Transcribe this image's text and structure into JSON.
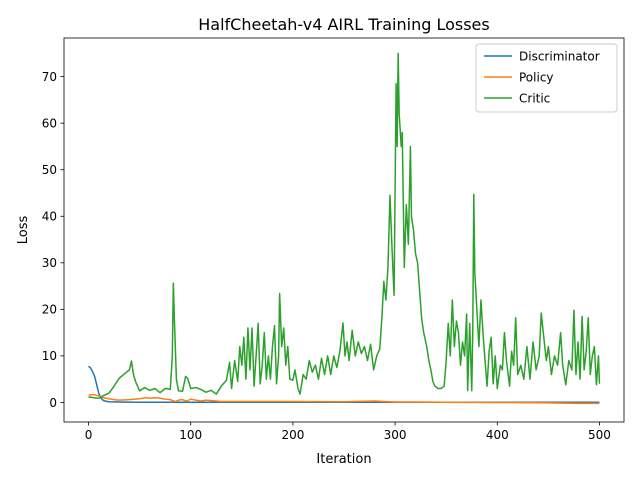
{
  "chart_data": {
    "type": "line",
    "title": "HalfCheetah-v4 AIRL Training Losses",
    "xlabel": "Iteration",
    "ylabel": "Loss",
    "xlim": [
      -24,
      524
    ],
    "ylim": [
      -4.2,
      78.3
    ],
    "xticks": [
      0,
      100,
      200,
      300,
      400,
      500
    ],
    "yticks": [
      0,
      10,
      20,
      30,
      40,
      50,
      60,
      70
    ],
    "grid": false,
    "legend_position": "upper right",
    "series": [
      {
        "name": "Discriminator",
        "color": "#1f77b4",
        "points": [
          [
            0,
            7.8
          ],
          [
            2,
            7.4
          ],
          [
            4,
            6.6
          ],
          [
            6,
            5.6
          ],
          [
            8,
            3.8
          ],
          [
            10,
            2.0
          ],
          [
            12,
            1.0
          ],
          [
            14,
            0.5
          ],
          [
            16,
            0.3
          ],
          [
            20,
            0.15
          ],
          [
            30,
            0.1
          ],
          [
            50,
            0.05
          ],
          [
            100,
            0.05
          ],
          [
            200,
            0.05
          ],
          [
            300,
            0.05
          ],
          [
            400,
            0.05
          ],
          [
            500,
            0.05
          ]
        ]
      },
      {
        "name": "Policy",
        "color": "#ff7f0e",
        "points": [
          [
            0,
            1.6
          ],
          [
            5,
            1.7
          ],
          [
            10,
            1.4
          ],
          [
            15,
            1.0
          ],
          [
            20,
            0.8
          ],
          [
            25,
            0.6
          ],
          [
            30,
            0.5
          ],
          [
            40,
            0.6
          ],
          [
            50,
            0.8
          ],
          [
            55,
            1.0
          ],
          [
            60,
            0.9
          ],
          [
            65,
            1.0
          ],
          [
            70,
            0.9
          ],
          [
            75,
            0.7
          ],
          [
            80,
            0.6
          ],
          [
            85,
            0.2
          ],
          [
            88,
            0.5
          ],
          [
            92,
            0.6
          ],
          [
            96,
            0.3
          ],
          [
            100,
            0.7
          ],
          [
            105,
            0.5
          ],
          [
            110,
            0.3
          ],
          [
            115,
            0.5
          ],
          [
            120,
            0.4
          ],
          [
            125,
            0.3
          ],
          [
            130,
            0.2
          ],
          [
            150,
            0.2
          ],
          [
            200,
            0.2
          ],
          [
            250,
            0.15
          ],
          [
            280,
            0.3
          ],
          [
            300,
            0.1
          ],
          [
            320,
            0.1
          ],
          [
            350,
            0.05
          ],
          [
            400,
            0.0
          ],
          [
            450,
            -0.1
          ],
          [
            480,
            -0.2
          ],
          [
            500,
            -0.2
          ]
        ]
      },
      {
        "name": "Critic",
        "color": "#2ca02c",
        "points": [
          [
            0,
            1.2
          ],
          [
            5,
            1.0
          ],
          [
            10,
            0.9
          ],
          [
            15,
            1.5
          ],
          [
            20,
            2.0
          ],
          [
            25,
            3.5
          ],
          [
            30,
            5.2
          ],
          [
            35,
            6.1
          ],
          [
            40,
            7.0
          ],
          [
            42,
            8.9
          ],
          [
            44,
            6.0
          ],
          [
            46,
            4.5
          ],
          [
            50,
            2.5
          ],
          [
            55,
            3.2
          ],
          [
            60,
            2.6
          ],
          [
            65,
            3.0
          ],
          [
            70,
            2.1
          ],
          [
            75,
            3.0
          ],
          [
            80,
            2.8
          ],
          [
            82,
            10.0
          ],
          [
            83,
            25.6
          ],
          [
            84,
            18.0
          ],
          [
            86,
            5.0
          ],
          [
            88,
            2.5
          ],
          [
            92,
            2.4
          ],
          [
            95,
            5.6
          ],
          [
            97,
            5.2
          ],
          [
            100,
            3.0
          ],
          [
            105,
            3.2
          ],
          [
            110,
            2.8
          ],
          [
            115,
            2.2
          ],
          [
            120,
            2.6
          ],
          [
            125,
            1.8
          ],
          [
            130,
            3.5
          ],
          [
            135,
            4.8
          ],
          [
            138,
            8.6
          ],
          [
            140,
            3.0
          ],
          [
            143,
            9.0
          ],
          [
            146,
            4.5
          ],
          [
            148,
            12.0
          ],
          [
            150,
            8.0
          ],
          [
            152,
            14.0
          ],
          [
            154,
            5.0
          ],
          [
            156,
            16.0
          ],
          [
            158,
            7.0
          ],
          [
            160,
            16.0
          ],
          [
            162,
            3.5
          ],
          [
            164,
            10.0
          ],
          [
            166,
            17.0
          ],
          [
            168,
            4.0
          ],
          [
            170,
            8.0
          ],
          [
            172,
            15.0
          ],
          [
            174,
            5.0
          ],
          [
            176,
            10.0
          ],
          [
            178,
            5.0
          ],
          [
            180,
            12.0
          ],
          [
            182,
            16.5
          ],
          [
            184,
            4.0
          ],
          [
            186,
            10.0
          ],
          [
            187,
            23.4
          ],
          [
            189,
            12.0
          ],
          [
            191,
            16.0
          ],
          [
            193,
            8.0
          ],
          [
            195,
            12.0
          ],
          [
            197,
            5.0
          ],
          [
            200,
            4.8
          ],
          [
            202,
            7.0
          ],
          [
            205,
            3.0
          ],
          [
            207,
            1.8
          ],
          [
            210,
            6.0
          ],
          [
            213,
            5.0
          ],
          [
            216,
            9.0
          ],
          [
            219,
            6.5
          ],
          [
            222,
            8.0
          ],
          [
            225,
            5.0
          ],
          [
            228,
            9.5
          ],
          [
            231,
            6.0
          ],
          [
            234,
            10.0
          ],
          [
            237,
            6.0
          ],
          [
            240,
            10.0
          ],
          [
            243,
            7.5
          ],
          [
            246,
            11.0
          ],
          [
            249,
            17.1
          ],
          [
            251,
            10.0
          ],
          [
            253,
            13.0
          ],
          [
            255,
            9.0
          ],
          [
            258,
            15.5
          ],
          [
            261,
            10.0
          ],
          [
            264,
            13.0
          ],
          [
            267,
            10.5
          ],
          [
            270,
            12.0
          ],
          [
            273,
            9.0
          ],
          [
            276,
            12.5
          ],
          [
            279,
            7.0
          ],
          [
            282,
            10.0
          ],
          [
            285,
            11.5
          ],
          [
            287,
            18.0
          ],
          [
            289,
            26.0
          ],
          [
            291,
            22.0
          ],
          [
            293,
            29.0
          ],
          [
            295,
            44.5
          ],
          [
            297,
            33.0
          ],
          [
            299,
            23.0
          ],
          [
            301,
            68.5
          ],
          [
            302,
            55.0
          ],
          [
            303,
            75.0
          ],
          [
            304,
            62.0
          ],
          [
            306,
            55.0
          ],
          [
            307,
            58.0
          ],
          [
            309,
            29.0
          ],
          [
            311,
            42.5
          ],
          [
            313,
            34.0
          ],
          [
            315,
            55.0
          ],
          [
            316,
            40.0
          ],
          [
            318,
            37.0
          ],
          [
            320,
            32.0
          ],
          [
            322,
            30.0
          ],
          [
            324,
            24.0
          ],
          [
            326,
            18.0
          ],
          [
            328,
            15.0
          ],
          [
            331,
            12.0
          ],
          [
            333,
            9.0
          ],
          [
            335,
            7.0
          ],
          [
            337,
            4.5
          ],
          [
            339,
            3.5
          ],
          [
            342,
            3.0
          ],
          [
            345,
            3.0
          ],
          [
            348,
            3.5
          ],
          [
            350,
            9.0
          ],
          [
            352,
            17.0
          ],
          [
            354,
            10.0
          ],
          [
            356,
            22.0
          ],
          [
            358,
            12.0
          ],
          [
            360,
            17.5
          ],
          [
            362,
            15.0
          ],
          [
            364,
            8.0
          ],
          [
            366,
            13.0
          ],
          [
            368,
            10.0
          ],
          [
            370,
            19.0
          ],
          [
            371,
            2.5
          ],
          [
            373,
            17.0
          ],
          [
            375,
            2.5
          ],
          [
            376,
            15.0
          ],
          [
            377,
            44.7
          ],
          [
            378,
            28.0
          ],
          [
            380,
            20.0
          ],
          [
            382,
            12.0
          ],
          [
            384,
            22.0
          ],
          [
            386,
            15.0
          ],
          [
            388,
            9.0
          ],
          [
            390,
            3.5
          ],
          [
            392,
            11.0
          ],
          [
            394,
            14.0
          ],
          [
            396,
            4.0
          ],
          [
            398,
            10.0
          ],
          [
            400,
            3.0
          ],
          [
            403,
            8.0
          ],
          [
            405,
            7.0
          ],
          [
            407,
            15.0
          ],
          [
            409,
            9.0
          ],
          [
            412,
            3.5
          ],
          [
            414,
            11.0
          ],
          [
            416,
            8.0
          ],
          [
            418,
            18.2
          ],
          [
            420,
            6.0
          ],
          [
            423,
            8.0
          ],
          [
            426,
            5.0
          ],
          [
            429,
            12.0
          ],
          [
            432,
            5.0
          ],
          [
            435,
            13.0
          ],
          [
            438,
            7.0
          ],
          [
            441,
            10.0
          ],
          [
            443,
            19.2
          ],
          [
            445,
            15.0
          ],
          [
            448,
            9.0
          ],
          [
            450,
            12.0
          ],
          [
            453,
            6.0
          ],
          [
            456,
            10.0
          ],
          [
            459,
            8.0
          ],
          [
            462,
            15.0
          ],
          [
            464,
            8.0
          ],
          [
            467,
            3.8
          ],
          [
            470,
            9.0
          ],
          [
            473,
            7.0
          ],
          [
            475,
            19.8
          ],
          [
            477,
            6.0
          ],
          [
            479,
            13.0
          ],
          [
            481,
            5.0
          ],
          [
            483,
            18.5
          ],
          [
            485,
            7.0
          ],
          [
            487,
            11.0
          ],
          [
            489,
            18.2
          ],
          [
            491,
            6.0
          ],
          [
            493,
            10.0
          ],
          [
            495,
            12.0
          ],
          [
            497,
            3.8
          ],
          [
            499,
            10.0
          ],
          [
            500,
            4.0
          ]
        ]
      }
    ]
  }
}
